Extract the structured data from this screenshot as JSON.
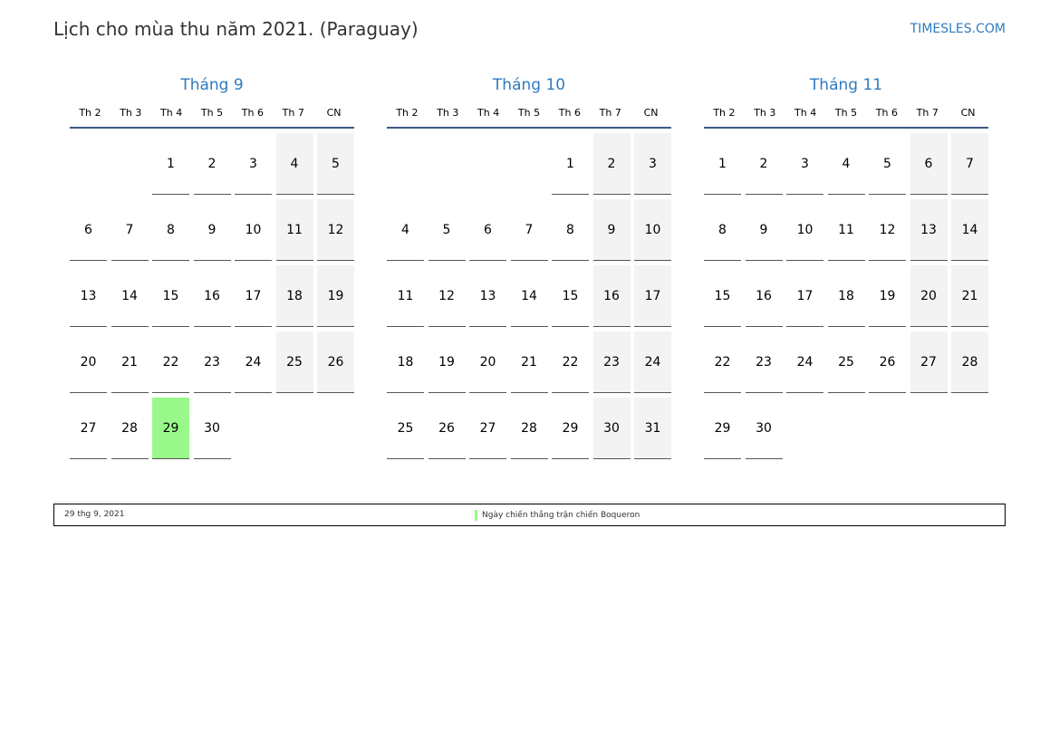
{
  "title": "Lịch cho mùa thu năm 2021. (Paraguay)",
  "brand": "TIMESLES.COM",
  "weekdays": [
    "Th 2",
    "Th 3",
    "Th 4",
    "Th 5",
    "Th 6",
    "Th 7",
    "CN"
  ],
  "colors": {
    "accent": "#2f7bbf",
    "holiday": "#98f98a",
    "weekend": "#f3f3f3"
  },
  "months": [
    {
      "name": "Tháng 9",
      "highlight": [
        29
      ],
      "weeks": [
        [
          null,
          null,
          1,
          2,
          3,
          4,
          5
        ],
        [
          6,
          7,
          8,
          9,
          10,
          11,
          12
        ],
        [
          13,
          14,
          15,
          16,
          17,
          18,
          19
        ],
        [
          20,
          21,
          22,
          23,
          24,
          25,
          26
        ],
        [
          27,
          28,
          29,
          30,
          null,
          null,
          null
        ]
      ]
    },
    {
      "name": "Tháng 10",
      "highlight": [],
      "weeks": [
        [
          null,
          null,
          null,
          null,
          1,
          2,
          3
        ],
        [
          4,
          5,
          6,
          7,
          8,
          9,
          10
        ],
        [
          11,
          12,
          13,
          14,
          15,
          16,
          17
        ],
        [
          18,
          19,
          20,
          21,
          22,
          23,
          24
        ],
        [
          25,
          26,
          27,
          28,
          29,
          30,
          31
        ]
      ]
    },
    {
      "name": "Tháng 11",
      "highlight": [],
      "weeks": [
        [
          1,
          2,
          3,
          4,
          5,
          6,
          7
        ],
        [
          8,
          9,
          10,
          11,
          12,
          13,
          14
        ],
        [
          15,
          16,
          17,
          18,
          19,
          20,
          21
        ],
        [
          22,
          23,
          24,
          25,
          26,
          27,
          28
        ],
        [
          29,
          30,
          null,
          null,
          null,
          null,
          null
        ]
      ]
    }
  ],
  "legend": {
    "date": "29 thg 9, 2021",
    "event": "Ngày chiến thắng trận chiến Boqueron"
  }
}
